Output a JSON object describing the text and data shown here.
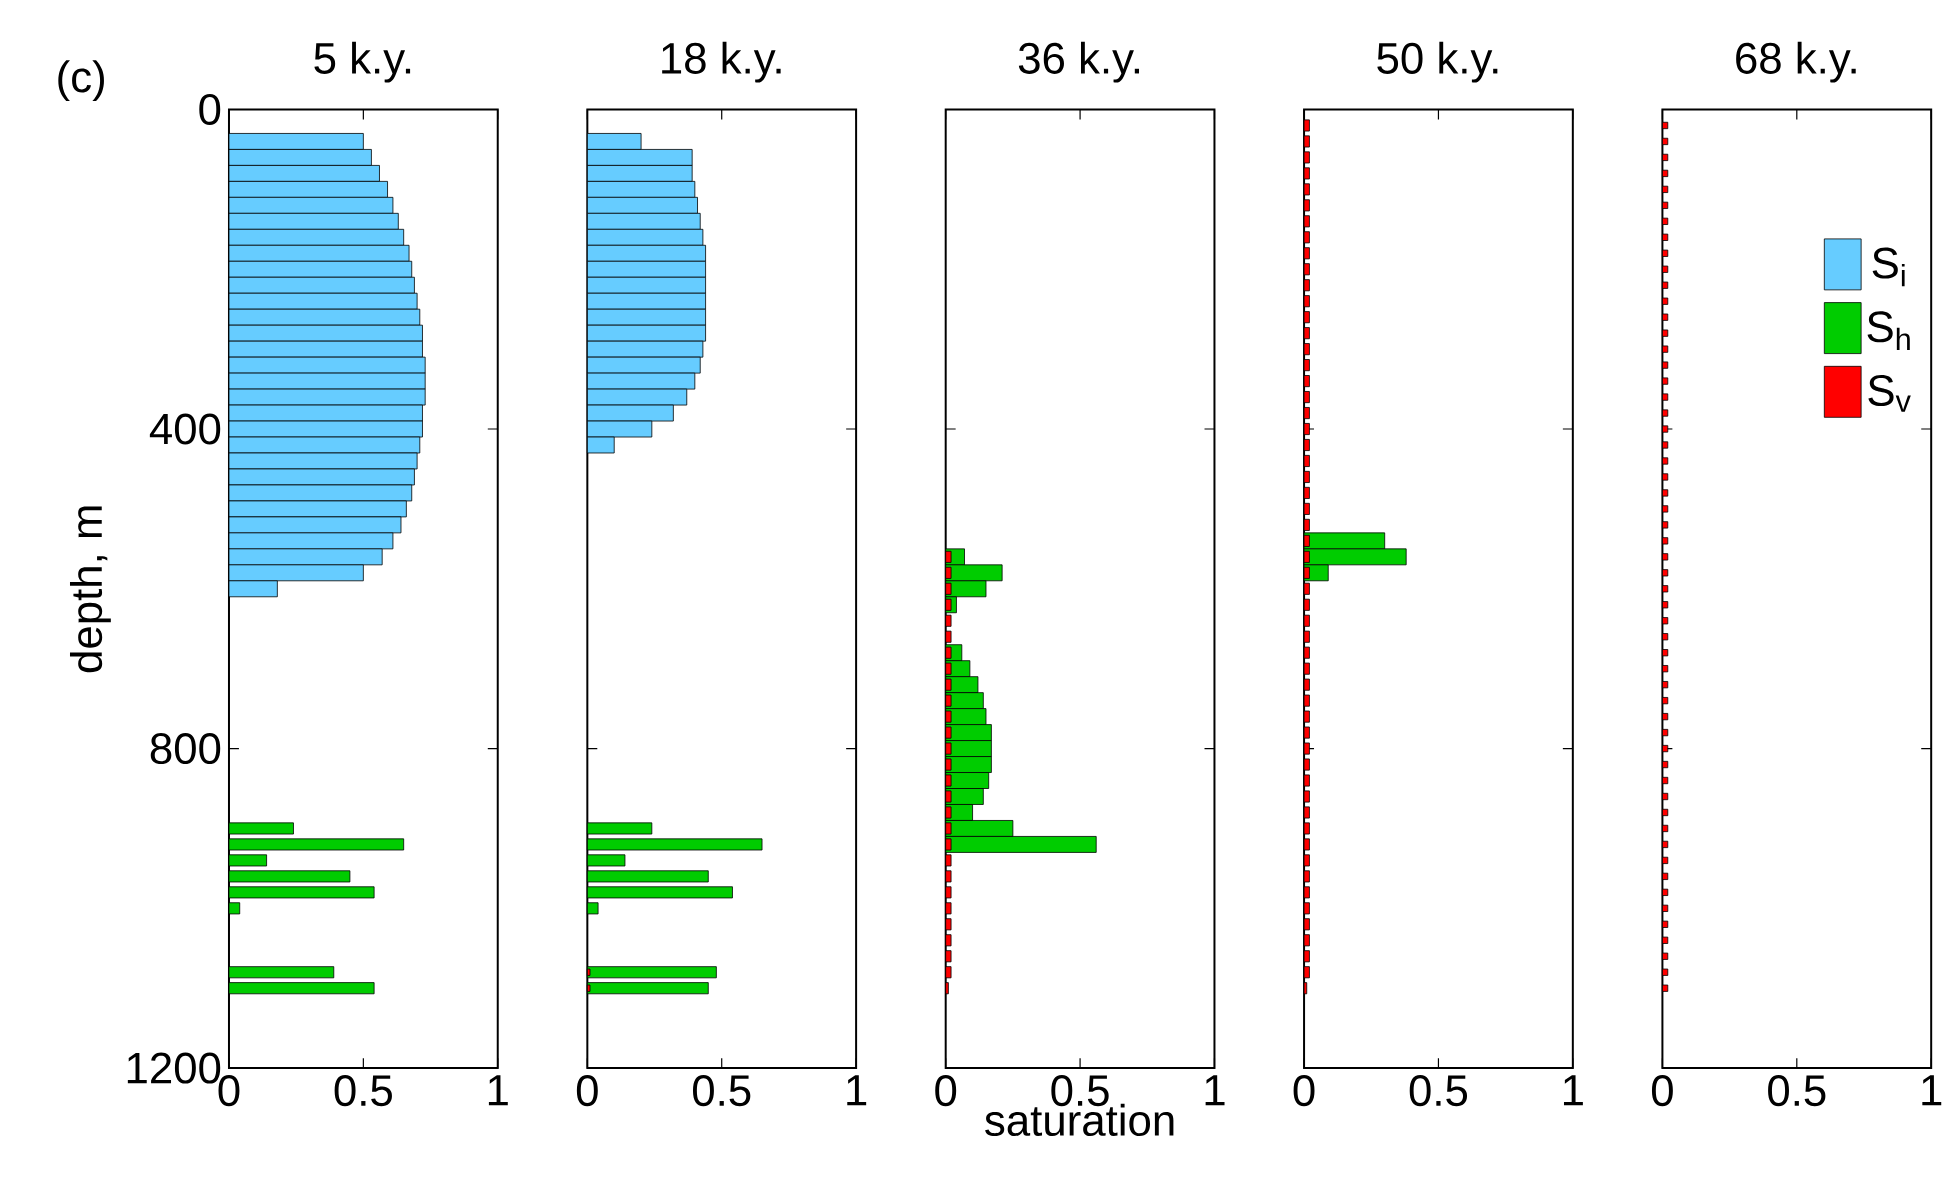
{
  "chart_data": [
    {
      "type": "bar",
      "orientation": "horizontal",
      "title": "5 k.y.",
      "ylabel": "depth, m",
      "annotations": [
        "(c)"
      ],
      "xlim": [
        0,
        1
      ],
      "xticks": [
        0,
        0.5,
        1
      ],
      "ylim": [
        1200,
        0
      ],
      "yticks": [
        0,
        400,
        800,
        1200
      ],
      "series": [
        {
          "color": "#66ccff",
          "x": [
            40,
            60,
            80,
            100,
            120,
            140,
            160,
            180,
            200,
            220,
            240,
            260,
            280,
            300,
            320,
            340,
            360,
            380,
            400,
            420,
            440,
            460,
            480,
            500,
            520,
            540,
            560,
            580,
            600
          ],
          "values": [
            0.5,
            0.53,
            0.56,
            0.59,
            0.61,
            0.63,
            0.65,
            0.67,
            0.68,
            0.69,
            0.7,
            0.71,
            0.72,
            0.72,
            0.73,
            0.73,
            0.73,
            0.72,
            0.72,
            0.71,
            0.7,
            0.69,
            0.68,
            0.66,
            0.64,
            0.61,
            0.57,
            0.5,
            0.18
          ]
        },
        {
          "color": "#00cc00",
          "x": [
            900,
            920,
            940,
            960,
            980,
            1000,
            1080,
            1100
          ],
          "values": [
            0.24,
            0.65,
            0.14,
            0.45,
            0.54,
            0.04,
            0.39,
            0.54
          ]
        }
      ]
    },
    {
      "type": "bar",
      "orientation": "horizontal",
      "title": "18 k.y.",
      "tick_labels": "x",
      "xlim": [
        0,
        1
      ],
      "xticks": [
        0,
        0.5,
        1
      ],
      "ylim": [
        1200,
        0
      ],
      "yticks": [
        0,
        400,
        800,
        1200
      ],
      "series": [
        {
          "color": "#66ccff",
          "x": [
            40,
            60,
            80,
            100,
            120,
            140,
            160,
            180,
            200,
            220,
            240,
            260,
            280,
            300,
            320,
            340,
            360,
            380,
            400,
            420
          ],
          "values": [
            0.2,
            0.39,
            0.39,
            0.4,
            0.41,
            0.42,
            0.43,
            0.44,
            0.44,
            0.44,
            0.44,
            0.44,
            0.44,
            0.43,
            0.42,
            0.4,
            0.37,
            0.32,
            0.24,
            0.1
          ]
        },
        {
          "color": "#00cc00",
          "x": [
            900,
            920,
            940,
            960,
            980,
            1000,
            1080,
            1100
          ],
          "values": [
            0.24,
            0.65,
            0.14,
            0.45,
            0.54,
            0.04,
            0.48,
            0.45
          ]
        },
        {
          "color": "#ff0000",
          "x": [
            1080,
            1100
          ],
          "values": [
            0.01,
            0.01
          ]
        }
      ]
    },
    {
      "type": "bar",
      "orientation": "horizontal",
      "title": "36 k.y.",
      "xlabel": "saturation",
      "tick_labels": "x",
      "xlim": [
        0,
        1
      ],
      "xticks": [
        0,
        0.5,
        1
      ],
      "ylim": [
        1200,
        0
      ],
      "yticks": [
        0,
        400,
        800,
        1200
      ],
      "series": [
        {
          "color": "#00cc00",
          "x": [
            560,
            580,
            600,
            620,
            680,
            700,
            720,
            740,
            760,
            780,
            800,
            820,
            840,
            860,
            880,
            900,
            920
          ],
          "values": [
            0.07,
            0.21,
            0.15,
            0.04,
            0.06,
            0.09,
            0.12,
            0.14,
            0.15,
            0.17,
            0.17,
            0.17,
            0.16,
            0.14,
            0.1,
            0.25,
            0.56
          ]
        },
        {
          "color": "#ff0000",
          "x": [
            560,
            580,
            600,
            620,
            640,
            660,
            680,
            700,
            720,
            740,
            760,
            780,
            800,
            820,
            840,
            860,
            880,
            900,
            920,
            940,
            960,
            980,
            1000,
            1020,
            1040,
            1060,
            1080,
            1100
          ],
          "values": [
            0.02,
            0.02,
            0.02,
            0.02,
            0.02,
            0.02,
            0.02,
            0.02,
            0.02,
            0.02,
            0.02,
            0.02,
            0.02,
            0.02,
            0.02,
            0.02,
            0.02,
            0.02,
            0.02,
            0.02,
            0.02,
            0.02,
            0.02,
            0.02,
            0.02,
            0.02,
            0.02,
            0.01
          ]
        }
      ]
    },
    {
      "type": "bar",
      "orientation": "horizontal",
      "title": "50 k.y.",
      "tick_labels": "x",
      "xlim": [
        0,
        1
      ],
      "xticks": [
        0,
        0.5,
        1
      ],
      "ylim": [
        1200,
        0
      ],
      "yticks": [
        0,
        400,
        800,
        1200
      ],
      "series": [
        {
          "color": "#00cc00",
          "x": [
            540,
            560,
            580
          ],
          "values": [
            0.3,
            0.38,
            0.09
          ]
        },
        {
          "color": "#ff0000",
          "x": [
            20,
            40,
            60,
            80,
            100,
            120,
            140,
            160,
            180,
            200,
            220,
            240,
            260,
            280,
            300,
            320,
            340,
            360,
            380,
            400,
            420,
            440,
            460,
            480,
            500,
            520,
            540,
            560,
            580,
            600,
            620,
            640,
            660,
            680,
            700,
            720,
            740,
            760,
            780,
            800,
            820,
            840,
            860,
            880,
            900,
            920,
            940,
            960,
            980,
            1000,
            1020,
            1040,
            1060,
            1080,
            1100
          ],
          "values": [
            0.02,
            0.02,
            0.02,
            0.02,
            0.02,
            0.02,
            0.02,
            0.02,
            0.02,
            0.02,
            0.02,
            0.02,
            0.02,
            0.02,
            0.02,
            0.02,
            0.02,
            0.02,
            0.02,
            0.02,
            0.02,
            0.02,
            0.02,
            0.02,
            0.02,
            0.02,
            0.02,
            0.02,
            0.02,
            0.02,
            0.02,
            0.02,
            0.02,
            0.02,
            0.02,
            0.02,
            0.02,
            0.02,
            0.02,
            0.02,
            0.02,
            0.02,
            0.02,
            0.02,
            0.02,
            0.02,
            0.02,
            0.02,
            0.02,
            0.02,
            0.02,
            0.02,
            0.02,
            0.02,
            0.01
          ]
        }
      ]
    },
    {
      "type": "bar",
      "orientation": "horizontal",
      "title": "68 k.y.",
      "tick_labels": "x",
      "legend": "top right",
      "xlim": [
        0,
        1
      ],
      "xticks": [
        0,
        0.5,
        1
      ],
      "ylim": [
        1200,
        0
      ],
      "yticks": [
        0,
        400,
        800,
        1200
      ],
      "series": [
        {
          "name": "S$_{i}$",
          "color": "#66ccff"
        },
        {
          "name": "S$_{h}$",
          "color": "#00cc00"
        },
        {
          "name": "S$_{v}$",
          "color": "#ff0000",
          "x": [
            20,
            40,
            60,
            80,
            100,
            120,
            140,
            160,
            180,
            200,
            220,
            240,
            260,
            280,
            300,
            320,
            340,
            360,
            380,
            400,
            420,
            440,
            460,
            480,
            500,
            520,
            540,
            560,
            580,
            600,
            620,
            640,
            660,
            680,
            700,
            720,
            740,
            760,
            780,
            800,
            820,
            840,
            860,
            880,
            900,
            920,
            940,
            960,
            980,
            1000,
            1020,
            1040,
            1060,
            1080,
            1100
          ],
          "values": [
            0.02,
            0.02,
            0.02,
            0.02,
            0.02,
            0.02,
            0.02,
            0.02,
            0.02,
            0.02,
            0.02,
            0.02,
            0.02,
            0.02,
            0.02,
            0.02,
            0.02,
            0.02,
            0.02,
            0.02,
            0.02,
            0.02,
            0.02,
            0.02,
            0.02,
            0.02,
            0.02,
            0.02,
            0.02,
            0.02,
            0.02,
            0.02,
            0.02,
            0.02,
            0.02,
            0.02,
            0.02,
            0.02,
            0.02,
            0.02,
            0.02,
            0.02,
            0.02,
            0.02,
            0.02,
            0.02,
            0.02,
            0.02,
            0.02,
            0.02,
            0.02,
            0.02,
            0.02,
            0.02,
            0.02
          ]
        }
      ]
    }
  ]
}
